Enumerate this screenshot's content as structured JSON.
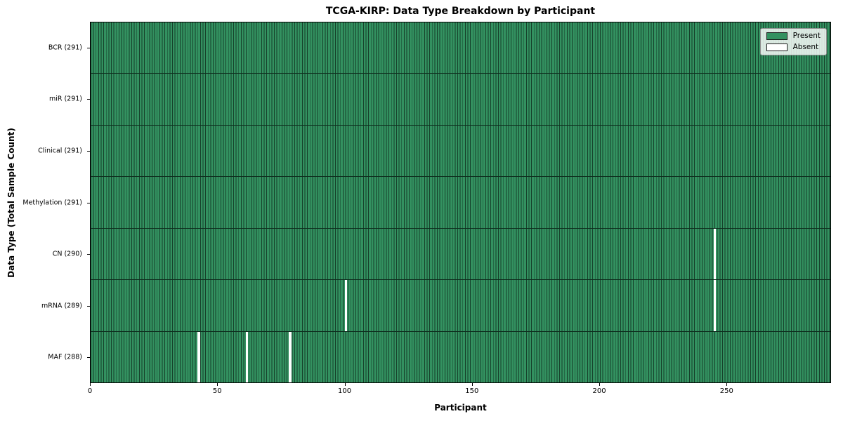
{
  "title": "TCGA-KIRP: Data Type Breakdown by Participant",
  "colors": {
    "present": "#339160",
    "cell_edge": "#16402a",
    "absent": "#ffffff"
  },
  "legend": {
    "entries": [
      {
        "label": "Present",
        "swatch_color": "#339160"
      },
      {
        "label": "Absent",
        "swatch_color": "#ffffff"
      }
    ]
  },
  "chart_data": {
    "type": "heatmap",
    "title": "TCGA-KIRP: Data Type Breakdown by Participant",
    "xlabel": "Participant",
    "ylabel": "Data Type (Total Sample Count)",
    "xlim": [
      0,
      291
    ],
    "x_ticks": [
      0,
      50,
      100,
      150,
      200,
      250
    ],
    "n_participants": 291,
    "legend_position": "upper right",
    "grid": false,
    "rows": [
      {
        "label": "BCR (291)",
        "data_type": "BCR",
        "total": 291,
        "absent_participants": []
      },
      {
        "label": "miR (291)",
        "data_type": "miR",
        "total": 291,
        "absent_participants": []
      },
      {
        "label": "Clinical (291)",
        "data_type": "Clinical",
        "total": 291,
        "absent_participants": []
      },
      {
        "label": "Methylation (291)",
        "data_type": "Methylation",
        "total": 291,
        "absent_participants": []
      },
      {
        "label": "CN (290)",
        "data_type": "CN",
        "total": 290,
        "absent_participants": [
          245
        ]
      },
      {
        "label": "mRNA (289)",
        "data_type": "mRNA",
        "total": 289,
        "absent_participants": [
          100,
          245
        ]
      },
      {
        "label": "MAF (288)",
        "data_type": "MAF",
        "total": 288,
        "absent_participants": [
          42,
          61,
          78
        ]
      }
    ]
  }
}
